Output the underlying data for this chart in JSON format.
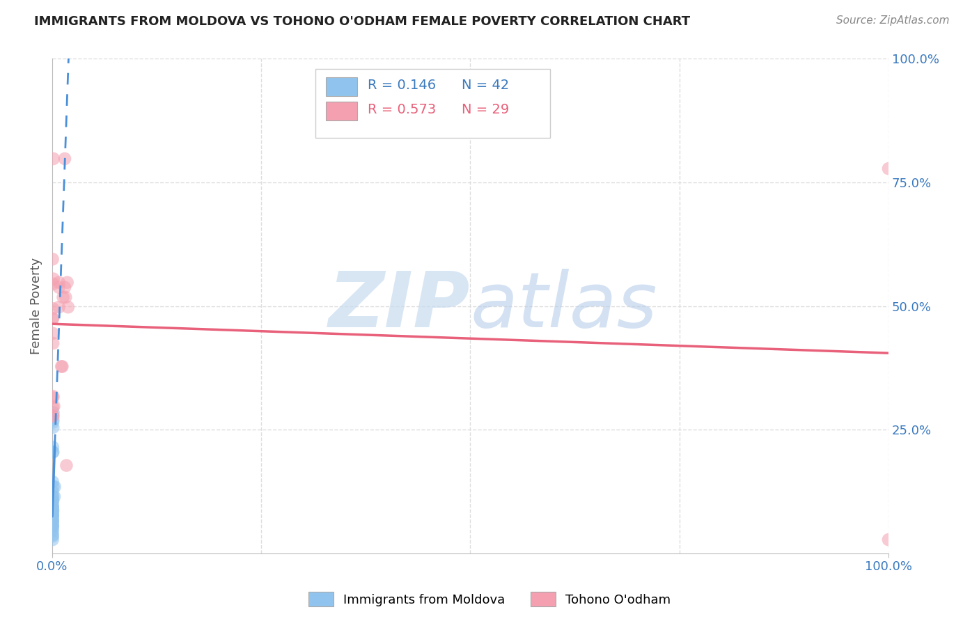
{
  "title": "IMMIGRANTS FROM MOLDOVA VS TOHONO O'ODHAM FEMALE POVERTY CORRELATION CHART",
  "source": "Source: ZipAtlas.com",
  "ylabel": "Female Poverty",
  "watermark_zip": "ZIP",
  "watermark_atlas": "atlas",
  "blue_color": "#90C4EE",
  "pink_color": "#F4A0B0",
  "blue_line_color": "#4A90D9",
  "pink_line_color": "#E8607A",
  "blue_scatter": [
    [
      0.0005,
      0.075
    ],
    [
      0.0006,
      0.065
    ],
    [
      0.0005,
      0.055
    ],
    [
      0.0007,
      0.085
    ],
    [
      0.0006,
      0.095
    ],
    [
      0.0004,
      0.045
    ],
    [
      0.0006,
      0.115
    ],
    [
      0.0007,
      0.105
    ],
    [
      0.0004,
      0.075
    ],
    [
      0.0005,
      0.085
    ],
    [
      0.0006,
      0.065
    ],
    [
      0.0007,
      0.055
    ],
    [
      0.0005,
      0.048
    ],
    [
      0.0004,
      0.058
    ],
    [
      0.0005,
      0.078
    ],
    [
      0.0006,
      0.095
    ],
    [
      0.0007,
      0.088
    ],
    [
      0.0006,
      0.125
    ],
    [
      0.0004,
      0.068
    ],
    [
      0.0005,
      0.078
    ],
    [
      0.0007,
      0.108
    ],
    [
      0.0006,
      0.145
    ],
    [
      0.0004,
      0.078
    ],
    [
      0.0007,
      0.088
    ],
    [
      0.0005,
      0.068
    ],
    [
      0.0006,
      0.115
    ],
    [
      0.0004,
      0.058
    ],
    [
      0.0005,
      0.095
    ],
    [
      0.0008,
      0.265
    ],
    [
      0.0006,
      0.105
    ],
    [
      0.0011,
      0.27
    ],
    [
      0.001,
      0.255
    ],
    [
      0.0012,
      0.285
    ],
    [
      0.0007,
      0.215
    ],
    [
      0.0006,
      0.205
    ],
    [
      0.003,
      0.135
    ],
    [
      0.0025,
      0.115
    ],
    [
      0.001,
      0.205
    ],
    [
      0.001,
      0.135
    ],
    [
      0.0006,
      0.038
    ],
    [
      0.0005,
      0.028
    ],
    [
      0.0006,
      0.035
    ]
  ],
  "pink_scatter": [
    [
      0.0005,
      0.595
    ],
    [
      0.0006,
      0.475
    ],
    [
      0.0007,
      0.475
    ],
    [
      0.0007,
      0.495
    ],
    [
      0.0008,
      0.445
    ],
    [
      0.0009,
      0.545
    ],
    [
      0.001,
      0.425
    ],
    [
      0.0009,
      0.295
    ],
    [
      0.0009,
      0.315
    ],
    [
      0.001,
      0.278
    ],
    [
      0.001,
      0.278
    ],
    [
      0.001,
      0.318
    ],
    [
      0.002,
      0.298
    ],
    [
      0.0015,
      0.555
    ],
    [
      0.0015,
      0.798
    ],
    [
      0.008,
      0.548
    ],
    [
      0.008,
      0.498
    ],
    [
      0.008,
      0.538
    ],
    [
      0.012,
      0.378
    ],
    [
      0.015,
      0.798
    ],
    [
      0.015,
      0.538
    ],
    [
      0.016,
      0.518
    ],
    [
      0.011,
      0.378
    ],
    [
      0.013,
      0.518
    ],
    [
      0.017,
      0.178
    ],
    [
      0.018,
      0.548
    ],
    [
      0.019,
      0.498
    ],
    [
      1.0,
      0.778
    ],
    [
      1.0,
      0.028
    ]
  ],
  "xmin": 0.0,
  "xmax": 1.0,
  "ymin": 0.0,
  "ymax": 1.0,
  "grid_color": "#DDDDDD",
  "bg_color": "#FFFFFF",
  "legend_r1": "R = 0.146",
  "legend_n1": "N = 42",
  "legend_r2": "R = 0.573",
  "legend_n2": "N = 29"
}
